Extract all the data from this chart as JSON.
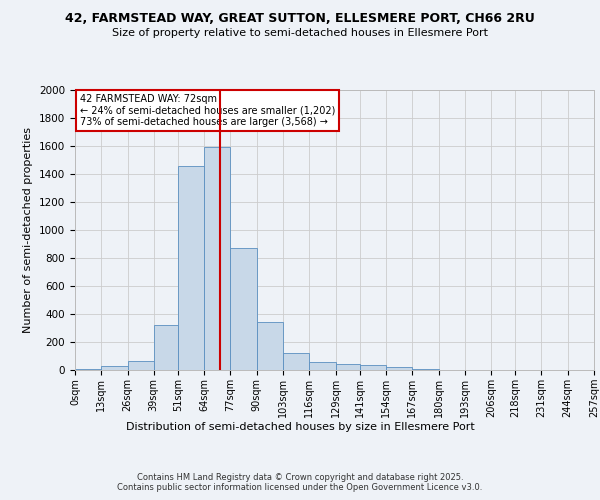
{
  "title1": "42, FARMSTEAD WAY, GREAT SUTTON, ELLESMERE PORT, CH66 2RU",
  "title2": "Size of property relative to semi-detached houses in Ellesmere Port",
  "xlabel": "Distribution of semi-detached houses by size in Ellesmere Port",
  "ylabel": "Number of semi-detached properties",
  "footer": "Contains HM Land Registry data © Crown copyright and database right 2025.\nContains public sector information licensed under the Open Government Licence v3.0.",
  "property_size": 72,
  "property_label": "42 FARMSTEAD WAY: 72sqm",
  "annotation_smaller": "← 24% of semi-detached houses are smaller (1,202)",
  "annotation_larger": "73% of semi-detached houses are larger (3,568) →",
  "bar_color": "#c8d8e8",
  "bar_edge_color": "#5a8fc0",
  "vline_color": "#cc0000",
  "annotation_box_color": "#cc0000",
  "bg_color": "#eef2f7",
  "grid_color": "#cccccc",
  "bin_edges": [
    0,
    13,
    26,
    39,
    51,
    64,
    77,
    90,
    103,
    116,
    129,
    141,
    154,
    167,
    180,
    193,
    206,
    218,
    231,
    244,
    257
  ],
  "bin_labels": [
    "0sqm",
    "13sqm",
    "26sqm",
    "39sqm",
    "51sqm",
    "64sqm",
    "77sqm",
    "90sqm",
    "103sqm",
    "116sqm",
    "129sqm",
    "141sqm",
    "154sqm",
    "167sqm",
    "180sqm",
    "193sqm",
    "206sqm",
    "218sqm",
    "231sqm",
    "244sqm",
    "257sqm"
  ],
  "bar_heights": [
    10,
    30,
    65,
    320,
    1455,
    1590,
    870,
    340,
    120,
    55,
    45,
    35,
    20,
    8,
    3,
    0,
    0,
    0,
    0,
    0
  ],
  "ylim": [
    0,
    2000
  ],
  "yticks": [
    0,
    200,
    400,
    600,
    800,
    1000,
    1200,
    1400,
    1600,
    1800,
    2000
  ]
}
